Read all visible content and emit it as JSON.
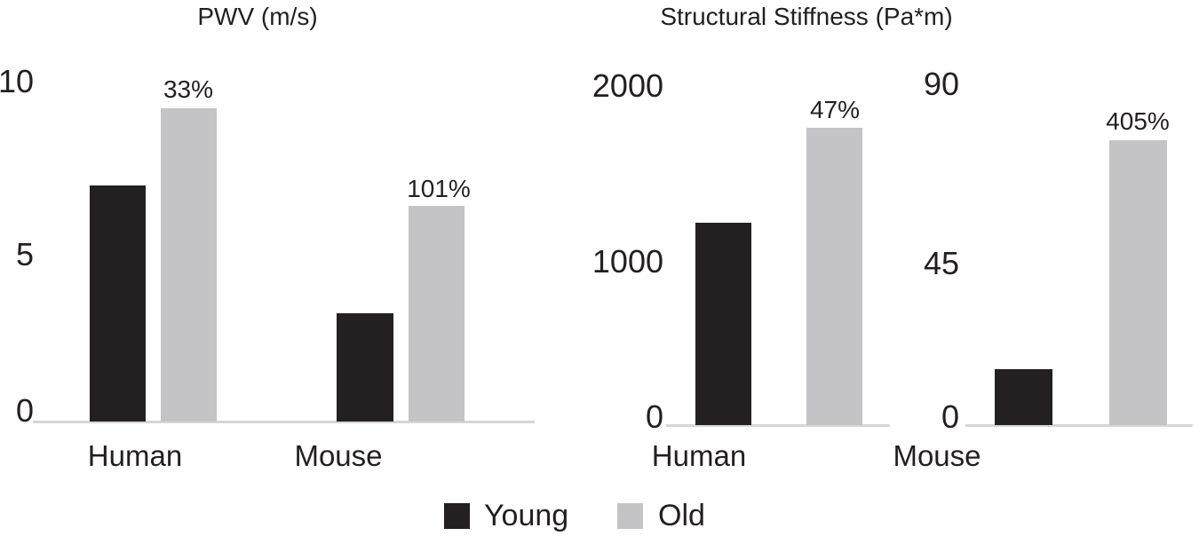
{
  "figure": {
    "legend": {
      "items": [
        {
          "label": "Young",
          "color": "#241f20"
        },
        {
          "label": "Old",
          "color": "#c4c4c6"
        }
      ]
    }
  },
  "chart_data": [
    {
      "type": "bar",
      "title": "PWV (m/s)",
      "categories": [
        "Human",
        "Mouse"
      ],
      "series": [
        {
          "name": "Young",
          "color": "#241f20",
          "values": [
            7.0,
            3.2
          ]
        },
        {
          "name": "Old",
          "color": "#c4c4c6",
          "values": [
            9.3,
            6.4
          ]
        }
      ],
      "annotations": {
        "old_bar_labels": [
          "33%",
          "101%"
        ]
      },
      "ylim": [
        0,
        10
      ],
      "yticks": [
        0,
        5,
        10
      ],
      "grid": false,
      "legend_position": "bottom"
    },
    {
      "type": "bar",
      "title": "Structural Stiffness (Pa*m)",
      "grid": false,
      "panels": [
        {
          "category": "Human",
          "ylim": [
            0,
            2000
          ],
          "yticks": [
            0,
            1000,
            2000
          ],
          "series": [
            {
              "name": "Young",
              "color": "#241f20",
              "value": 1200
            },
            {
              "name": "Old",
              "color": "#c4c4c6",
              "value": 1765
            }
          ],
          "old_bar_label": "47%"
        },
        {
          "category": "Mouse",
          "ylim": [
            0,
            90
          ],
          "yticks": [
            0,
            45,
            90
          ],
          "series": [
            {
              "name": "Young",
              "color": "#241f20",
              "value": 15
            },
            {
              "name": "Old",
              "color": "#c4c4c6",
              "value": 76
            }
          ],
          "old_bar_label": "405%"
        }
      ]
    }
  ]
}
